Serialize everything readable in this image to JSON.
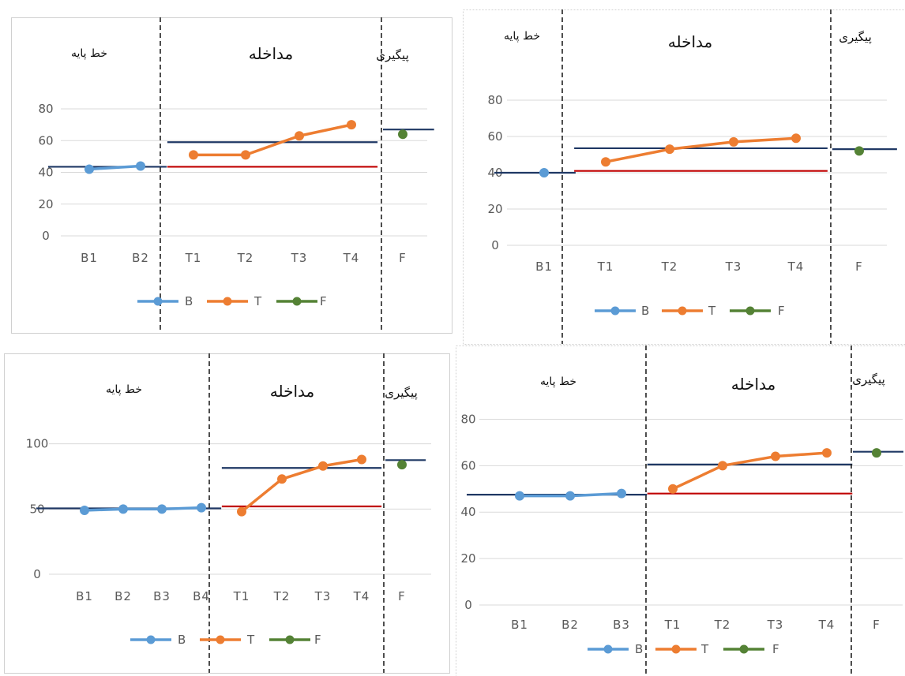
{
  "chart_data": [
    {
      "type": "line",
      "phases": [
        "خط پایه",
        "مداخله",
        "پیگیری"
      ],
      "categories": [
        "B1",
        "B2",
        "T1",
        "T2",
        "T3",
        "T4",
        "F"
      ],
      "ylim": [
        0,
        80
      ],
      "yticks": [
        0,
        20,
        40,
        60,
        80
      ],
      "grid": true,
      "legend_position": "bottom",
      "series": [
        {
          "name": "B",
          "color": "#5B9BD5",
          "points": [
            [
              "B1",
              42
            ],
            [
              "B2",
              44
            ]
          ]
        },
        {
          "name": "T",
          "color": "#ED7D31",
          "points": [
            [
              "T1",
              51
            ],
            [
              "T2",
              51
            ],
            [
              "T3",
              63
            ],
            [
              "T4",
              70
            ]
          ]
        },
        {
          "name": "F",
          "color": "#548235",
          "points": [
            [
              "F",
              64
            ]
          ]
        }
      ],
      "reference_lines": [
        {
          "color": "#1F3864",
          "value": 43.5,
          "from": "B1",
          "to": "B2"
        },
        {
          "color": "#1F3864",
          "value": 59,
          "from": "T1",
          "to": "T4"
        },
        {
          "color": "#C00000",
          "value": 43.5,
          "from": "T1",
          "to": "T4"
        },
        {
          "color": "#1F3864",
          "value": 67,
          "from": "F",
          "to": "F"
        }
      ]
    },
    {
      "type": "line",
      "phases": [
        "خط پایه",
        "مداخله",
        "پیگیری"
      ],
      "categories": [
        "B1",
        "T1",
        "T2",
        "T3",
        "T4",
        "F"
      ],
      "ylim": [
        0,
        80
      ],
      "yticks": [
        0,
        20,
        40,
        60,
        80
      ],
      "grid": true,
      "legend_position": "bottom",
      "series": [
        {
          "name": "B",
          "color": "#5B9BD5",
          "points": [
            [
              "B1",
              40
            ]
          ]
        },
        {
          "name": "T",
          "color": "#ED7D31",
          "points": [
            [
              "T1",
              46
            ],
            [
              "T2",
              53
            ],
            [
              "T3",
              57
            ],
            [
              "T4",
              59
            ]
          ]
        },
        {
          "name": "F",
          "color": "#548235",
          "points": [
            [
              "F",
              52
            ]
          ]
        }
      ],
      "reference_lines": [
        {
          "color": "#1F3864",
          "value": 40,
          "from": "B1",
          "to": "B1"
        },
        {
          "color": "#1F3864",
          "value": 53.5,
          "from": "T1",
          "to": "T4"
        },
        {
          "color": "#C00000",
          "value": 41,
          "from": "T1",
          "to": "T4"
        },
        {
          "color": "#1F3864",
          "value": 53,
          "from": "F",
          "to": "F"
        }
      ]
    },
    {
      "type": "line",
      "phases": [
        "خط پایه",
        "مداخله",
        "پیگیری"
      ],
      "categories": [
        "B1",
        "B2",
        "B3",
        "B4",
        "T1",
        "T2",
        "T3",
        "T4",
        "F"
      ],
      "ylim": [
        0,
        150
      ],
      "yticks": [
        0,
        50,
        100
      ],
      "grid": true,
      "legend_position": "bottom",
      "series": [
        {
          "name": "B",
          "color": "#5B9BD5",
          "points": [
            [
              "B1",
              49
            ],
            [
              "B2",
              50
            ],
            [
              "B3",
              50
            ],
            [
              "B4",
              51
            ]
          ]
        },
        {
          "name": "T",
          "color": "#ED7D31",
          "points": [
            [
              "T1",
              48
            ],
            [
              "T2",
              73
            ],
            [
              "T3",
              83
            ],
            [
              "T4",
              88
            ]
          ]
        },
        {
          "name": "F",
          "color": "#548235",
          "points": [
            [
              "F",
              84
            ]
          ]
        }
      ],
      "reference_lines": [
        {
          "color": "#1F3864",
          "value": 50.5,
          "from": "B1",
          "to": "B4"
        },
        {
          "color": "#1F3864",
          "value": 81.5,
          "from": "T1",
          "to": "T4"
        },
        {
          "color": "#C00000",
          "value": 52,
          "from": "T1",
          "to": "T4"
        },
        {
          "color": "#1F3864",
          "value": 87.5,
          "from": "F",
          "to": "F"
        }
      ]
    },
    {
      "type": "line",
      "phases": [
        "خط پایه",
        "مداخله",
        "پیگیری"
      ],
      "categories": [
        "B1",
        "B2",
        "B3",
        "T1",
        "T2",
        "T3",
        "T4",
        "F"
      ],
      "ylim": [
        0,
        90
      ],
      "yticks": [
        0,
        20,
        40,
        60,
        80
      ],
      "grid": true,
      "legend_position": "bottom",
      "series": [
        {
          "name": "B",
          "color": "#5B9BD5",
          "points": [
            [
              "B1",
              47
            ],
            [
              "B2",
              47
            ],
            [
              "B3",
              48
            ]
          ]
        },
        {
          "name": "T",
          "color": "#ED7D31",
          "points": [
            [
              "T1",
              50
            ],
            [
              "T2",
              60
            ],
            [
              "T3",
              64
            ],
            [
              "T4",
              65.5
            ]
          ]
        },
        {
          "name": "F",
          "color": "#548235",
          "points": [
            [
              "F",
              65.5
            ]
          ]
        }
      ],
      "reference_lines": [
        {
          "color": "#1F3864",
          "value": 47.5,
          "from": "B1",
          "to": "B3"
        },
        {
          "color": "#1F3864",
          "value": 60.5,
          "from": "T1",
          "to": "T4"
        },
        {
          "color": "#C00000",
          "value": 48,
          "from": "T1",
          "to": "T4"
        },
        {
          "color": "#1F3864",
          "value": 66,
          "from": "F",
          "to": "F"
        }
      ]
    }
  ]
}
